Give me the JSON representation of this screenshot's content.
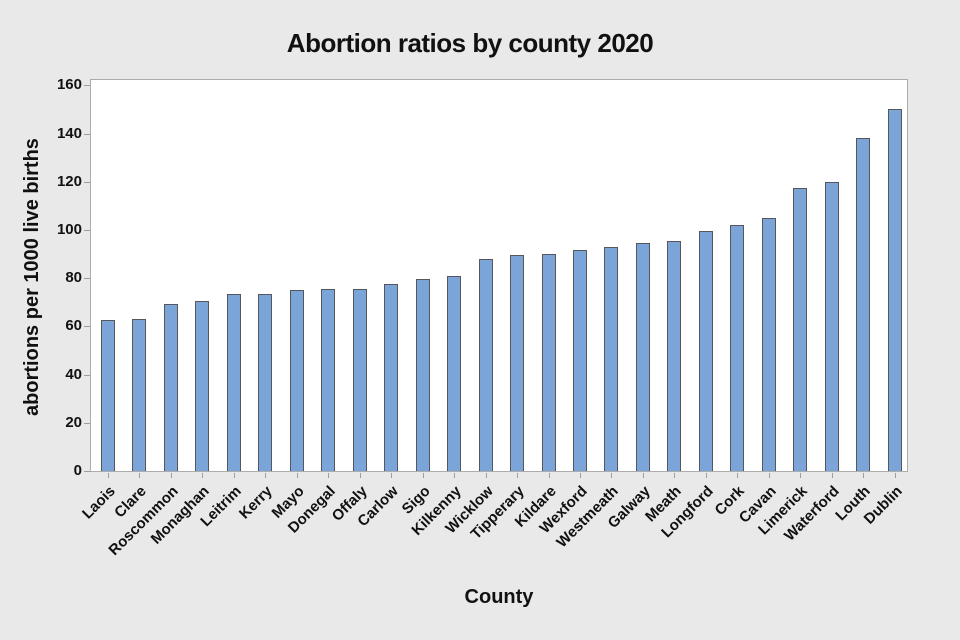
{
  "title": "Abortion ratios by county 2020",
  "chart_data": {
    "type": "bar",
    "title": "Abortion ratios by county 2020",
    "xlabel": "County",
    "ylabel": "abortions per 1000 live births",
    "categories": [
      "Laois",
      "Clare",
      "Roscommon",
      "Monaghan",
      "Leitrim",
      "Kerry",
      "Mayo",
      "Donegal",
      "Offaly",
      "Carlow",
      "Sigo",
      "Kilkenny",
      "Wicklow",
      "Tipperary",
      "Kildare",
      "Wexford",
      "Westmeath",
      "Galway",
      "Meath",
      "Longford",
      "Cork",
      "Cavan",
      "Limerick",
      "Waterford",
      "Louth",
      "Dublin"
    ],
    "values": [
      62.5,
      63,
      69.5,
      70.5,
      73.5,
      73.5,
      75,
      75.5,
      75.5,
      77.5,
      79.5,
      81,
      88,
      89.5,
      90,
      91.5,
      93,
      94.5,
      95.5,
      99.5,
      102,
      105,
      117.5,
      120,
      138,
      150
    ],
    "ylim": [
      0,
      160
    ],
    "ytick_step": 20,
    "grid": false,
    "legend": false,
    "bar_color": "#7BA4D8",
    "bar_border_color": "#55575c",
    "background_color": "#e9e9e9",
    "plot_background_color": "#ffffff",
    "frame_color": "#acacac",
    "tick_color": "#9e9e9e"
  }
}
